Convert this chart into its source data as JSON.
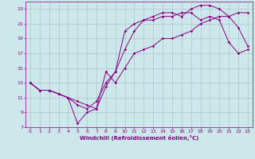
{
  "xlabel": "Windchill (Refroidissement éolien,°C)",
  "bg_color": "#cce8ea",
  "grid_color": "#aabbcc",
  "line_color": "#880088",
  "xlim": [
    -0.5,
    23.5
  ],
  "ylim": [
    7,
    24
  ],
  "xticks": [
    0,
    1,
    2,
    3,
    4,
    5,
    6,
    7,
    8,
    9,
    10,
    11,
    12,
    13,
    14,
    15,
    16,
    17,
    18,
    19,
    20,
    21,
    22,
    23
  ],
  "yticks": [
    7,
    9,
    11,
    13,
    15,
    17,
    19,
    21,
    23
  ],
  "line1_x": [
    0,
    1,
    2,
    3,
    4,
    5,
    6,
    7,
    8,
    9,
    10,
    11,
    12,
    13,
    14,
    15,
    16,
    17,
    18,
    19,
    20,
    21,
    22,
    23
  ],
  "line1_y": [
    13,
    12,
    12,
    11.5,
    11,
    10.5,
    10,
    9.5,
    14.5,
    13,
    15,
    17,
    17.5,
    18,
    19,
    19,
    19.5,
    20,
    21,
    21.5,
    22,
    22,
    22.5,
    22.5
  ],
  "line2_x": [
    0,
    1,
    2,
    3,
    4,
    5,
    6,
    7,
    8,
    9,
    10,
    11,
    12,
    13,
    14,
    15,
    16,
    17,
    18,
    19,
    20,
    21,
    22,
    23
  ],
  "line2_y": [
    13,
    12,
    12,
    11.5,
    11,
    7.5,
    9,
    9.5,
    12.5,
    14.5,
    20,
    21,
    21.5,
    22,
    22.5,
    22.5,
    22,
    23,
    23.5,
    23.5,
    23,
    22,
    20.5,
    18
  ],
  "line3_x": [
    0,
    1,
    2,
    3,
    4,
    5,
    6,
    7,
    8,
    9,
    10,
    11,
    12,
    13,
    14,
    15,
    16,
    17,
    18,
    19,
    20,
    21,
    22,
    23
  ],
  "line3_y": [
    13,
    12,
    12,
    11.5,
    11,
    10,
    9.5,
    10.5,
    13,
    14.5,
    17.5,
    20,
    21.5,
    21.5,
    22,
    22,
    22.5,
    22.5,
    21.5,
    22,
    21.5,
    18.5,
    17,
    17.5
  ]
}
